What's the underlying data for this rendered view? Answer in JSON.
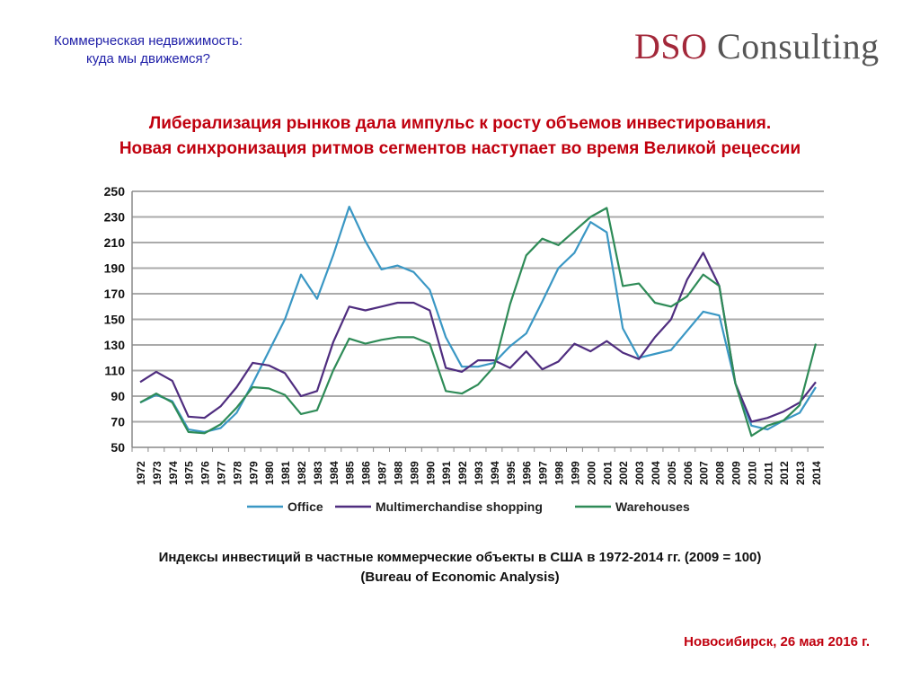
{
  "header": {
    "line1": "Коммерческая недвижимость:",
    "line2": "куда мы движемся?"
  },
  "logo": {
    "part1": "DSO",
    "part2": " Consulting"
  },
  "title": {
    "line1": "Либерализация рынков дала импульс к росту объемов инвестирования.",
    "line2": "Новая синхронизация ритмов сегментов наступает во время Великой рецессии"
  },
  "caption": {
    "line1": "Индексы инвестиций в частные коммерческие объекты в США в 1972-2014 гг. (2009 = 100)",
    "line2": "(Bureau of Economic Analysis)"
  },
  "footer": "Новосибирск, 26 мая 2016 г.",
  "chart_data": {
    "type": "line",
    "title": "",
    "xlabel": "",
    "ylabel": "",
    "ylim": [
      50,
      250
    ],
    "yticks": [
      50,
      70,
      90,
      110,
      130,
      150,
      170,
      190,
      210,
      230,
      250
    ],
    "grid": true,
    "legend_position": "bottom",
    "x": [
      1972,
      1973,
      1974,
      1975,
      1976,
      1977,
      1978,
      1979,
      1980,
      1981,
      1982,
      1983,
      1984,
      1985,
      1986,
      1987,
      1988,
      1989,
      1990,
      1991,
      1992,
      1993,
      1994,
      1995,
      1996,
      1997,
      1998,
      1999,
      2000,
      2001,
      2002,
      2003,
      2004,
      2005,
      2006,
      2007,
      2008,
      2009,
      2010,
      2011,
      2012,
      2013,
      2014
    ],
    "series": [
      {
        "name": "Office",
        "color": "#3a97c4",
        "values": [
          85,
          91,
          86,
          64,
          62,
          65,
          77,
          100,
          125,
          150,
          185,
          166,
          200,
          238,
          211,
          189,
          192,
          187,
          173,
          136,
          113,
          113,
          116,
          129,
          139,
          164,
          190,
          202,
          226,
          218,
          143,
          120,
          123,
          126,
          141,
          156,
          153,
          100,
          67,
          64,
          71,
          77,
          97
        ]
      },
      {
        "name": "Multimerchandise shopping",
        "color": "#4f2d7f",
        "values": [
          101,
          109,
          102,
          74,
          73,
          82,
          97,
          116,
          114,
          108,
          90,
          94,
          132,
          160,
          157,
          160,
          163,
          163,
          157,
          112,
          109,
          118,
          118,
          112,
          125,
          111,
          117,
          131,
          125,
          133,
          124,
          119,
          136,
          150,
          181,
          202,
          176,
          100,
          70,
          73,
          78,
          85,
          101
        ]
      },
      {
        "name": "Warehouses",
        "color": "#2e8b57",
        "values": [
          85,
          92,
          85,
          62,
          61,
          68,
          81,
          97,
          96,
          91,
          76,
          79,
          110,
          135,
          131,
          134,
          136,
          136,
          131,
          94,
          92,
          99,
          113,
          162,
          200,
          213,
          208,
          219,
          230,
          237,
          176,
          178,
          163,
          160,
          168,
          185,
          176,
          100,
          59,
          67,
          71,
          83,
          131
        ]
      }
    ]
  }
}
